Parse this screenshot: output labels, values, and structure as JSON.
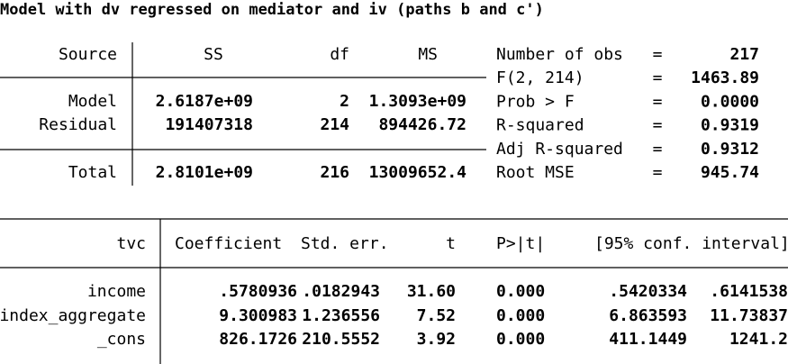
{
  "title": "Model with dv regressed on mediator and iv (paths b and c')",
  "anova": {
    "header": [
      "Source",
      "SS",
      "df",
      "MS"
    ],
    "rows": [
      [
        "Model",
        "2.6187e+09",
        "2",
        "1.3093e+09"
      ],
      [
        "Residual",
        "191407318",
        "214",
        "894426.72"
      ],
      [
        "Total",
        "2.8101e+09",
        "216",
        "13009652.4"
      ]
    ]
  },
  "stats": {
    "separator": "=",
    "rows": [
      {
        "label": "Number of obs",
        "value": "217"
      },
      {
        "label": "F(2, 214)",
        "value": "1463.89"
      },
      {
        "label": "Prob > F",
        "value": "0.0000"
      },
      {
        "label": "R-squared",
        "value": "0.9319"
      },
      {
        "label": "Adj R-squared",
        "value": "0.9312"
      },
      {
        "label": "Root MSE",
        "value": "945.74"
      }
    ]
  },
  "coef": {
    "header": [
      "tvc",
      "Coefficient",
      "Std. err.",
      "t",
      "P>|t|",
      "[95% conf. interval]"
    ],
    "rows": [
      [
        "income",
        ".5780936",
        ".0182943",
        "31.60",
        "0.000",
        ".5420334",
        ".6141538"
      ],
      [
        "index_aggregate",
        "9.300983",
        "1.236556",
        "7.52",
        "0.000",
        "6.863593",
        "11.73837"
      ],
      [
        "_cons",
        "826.1726",
        "210.5552",
        "3.92",
        "0.000",
        "411.1449",
        "1241.2"
      ]
    ]
  }
}
